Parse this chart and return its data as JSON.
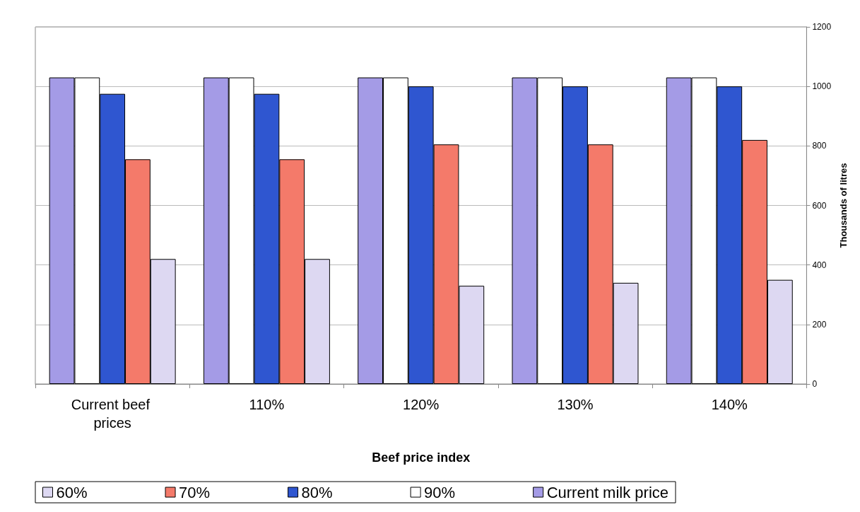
{
  "chart_data": {
    "type": "bar",
    "xlabel": "Beef price index",
    "ylabel": "Thousands of litres",
    "categories": [
      "Current beef prices",
      "110%",
      "120%",
      "130%",
      "140%"
    ],
    "series": [
      {
        "name": "Current milk price",
        "color": "#a49be6",
        "values": [
          1030,
          1030,
          1030,
          1030,
          1030
        ]
      },
      {
        "name": "90%",
        "color": "#ffffff",
        "values": [
          1030,
          1030,
          1030,
          1030,
          1030
        ]
      },
      {
        "name": "80%",
        "color": "#2f56d0",
        "values": [
          975,
          975,
          1000,
          1000,
          1000
        ]
      },
      {
        "name": "70%",
        "color": "#f47a6a",
        "values": [
          755,
          755,
          805,
          805,
          820
        ]
      },
      {
        "name": "60%",
        "color": "#ddd8f2",
        "values": [
          420,
          420,
          330,
          340,
          350
        ]
      }
    ],
    "ylim": [
      0,
      1200
    ],
    "yticks": [
      0,
      200,
      400,
      600,
      800,
      1000,
      1200
    ],
    "grid": "y",
    "legend": "bottom"
  }
}
